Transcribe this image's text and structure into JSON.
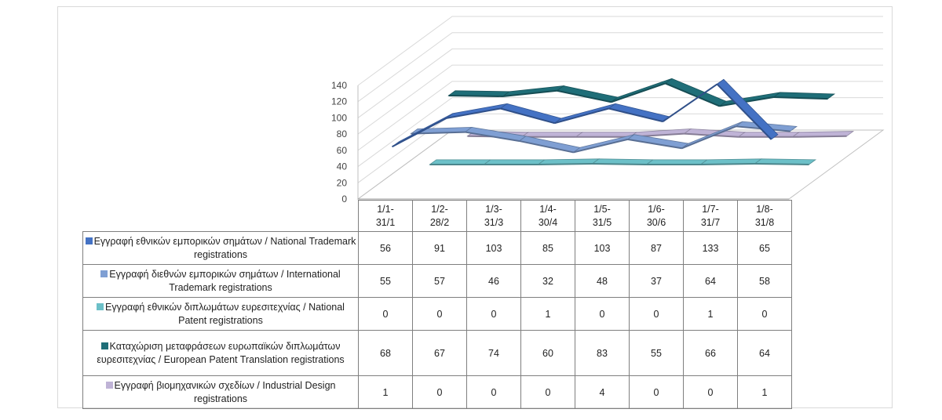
{
  "chart_data": {
    "type": "line",
    "style": "3d-line-with-data-table",
    "categories": [
      "1/1-31/1",
      "1/2-28/2",
      "1/3-31/3",
      "1/4-30/4",
      "1/5-31/5",
      "1/6-30/6",
      "1/7-31/7",
      "1/8-31/8"
    ],
    "ylim": [
      0,
      140
    ],
    "yticks": [
      0,
      20,
      40,
      60,
      80,
      100,
      120,
      140
    ],
    "grid": true,
    "series": [
      {
        "name": "Εγγραφή εθνικών εμπορικών σημάτων / National Trademark registrations",
        "color": "#4472c4",
        "values": [
          56,
          91,
          103,
          85,
          103,
          87,
          133,
          65
        ]
      },
      {
        "name": "Εγγραφή διεθνών εμπορικών σημάτων / International Trademark registrations",
        "color": "#7f9fd3",
        "values": [
          55,
          57,
          46,
          32,
          48,
          37,
          64,
          58
        ]
      },
      {
        "name": "Εγγραφή εθνικών διπλωμάτων ευρεσιτεχνίας / National Patent registrations",
        "color": "#6cc0c8",
        "values": [
          0,
          0,
          0,
          1,
          0,
          0,
          1,
          0
        ]
      },
      {
        "name": "Καταχώριση μεταφράσεων ευρωπαϊκών διπλωμάτων ευρεσιτεχνίας / European Patent Translation registrations",
        "color": "#1f6e78",
        "values": [
          68,
          67,
          74,
          60,
          83,
          55,
          66,
          64
        ]
      },
      {
        "name": "Εγγραφή βιομηχανικών σχεδίων / Industrial Design registrations",
        "color": "#bfb3d6",
        "values": [
          1,
          0,
          0,
          0,
          4,
          0,
          0,
          1
        ]
      }
    ]
  }
}
